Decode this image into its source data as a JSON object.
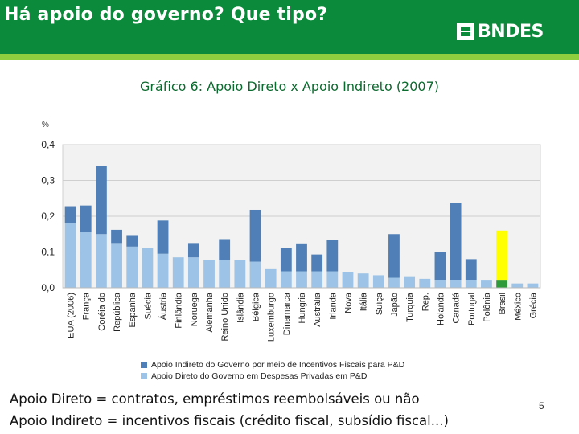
{
  "header": {
    "title": "Há apoio do governo? Que tipo?",
    "logo_text": "BNDES",
    "background_color": "#0a8a3a",
    "accent_bar_color": "#8fcf3f"
  },
  "chart_data": {
    "type": "bar",
    "stacked": true,
    "title": "Gráfico 6: Apoio Direto x Apoio Indireto (2007)",
    "ylabel": "%",
    "ylim": [
      0,
      0.4
    ],
    "yticks": [
      "0,0",
      "0,1",
      "0,2",
      "0,3",
      "0,4"
    ],
    "grid": true,
    "legend_position": "bottom",
    "categories": [
      "EUA (2006)",
      "França",
      "Coréia do Sul",
      "República Tcheca",
      "Espanha",
      "Suécia",
      "Áustria",
      "Finlândia",
      "Noruega",
      "Alemanha",
      "Reino Unido",
      "Islândia",
      "Bélgica",
      "Luxemburgo",
      "Dinamarca",
      "Hungria",
      "Austrália",
      "Irlanda",
      "Nova Zelândia",
      "Itália",
      "Suíça",
      "Japão",
      "Turquia",
      "Rep. Eslovaca",
      "Holanda",
      "Canadá",
      "Portugal",
      "Polônia",
      "Brasil",
      "México",
      "Grécia"
    ],
    "tick_labels": [
      "EUA (2006)",
      "França",
      "Coréia do",
      "República",
      "Espanha",
      "Suécia",
      "Áustria",
      "Finlândia",
      "Noruega",
      "Alemanha",
      "Reino Unido",
      "Islândia",
      "Bélgica",
      "Luxemburgo",
      "Dinamarca",
      "Hungria",
      "Austrália",
      "Irlanda",
      "Nova",
      "Itália",
      "Suíça",
      "Japão",
      "Turquia",
      "Rep.",
      "Holanda",
      "Canadá",
      "Portugal",
      "Polônia",
      "Brasil",
      "México",
      "Grécia"
    ],
    "series": [
      {
        "name": "Apoio Direto do Governo em Despesas Privadas em P&D",
        "color": "#9dc3e6",
        "values": [
          0.18,
          0.155,
          0.15,
          0.125,
          0.115,
          0.112,
          0.095,
          0.085,
          0.085,
          0.077,
          0.078,
          0.078,
          0.073,
          0.052,
          0.046,
          0.046,
          0.046,
          0.046,
          0.044,
          0.04,
          0.035,
          0.028,
          0.03,
          0.025,
          0.022,
          0.022,
          0.022,
          0.02,
          0.02,
          0.012,
          0.012
        ]
      },
      {
        "name": "Apoio Indireto do Governo por meio de Incentivos Fiscais para P&D",
        "color": "#4f7fb6",
        "values": [
          0.048,
          0.075,
          0.19,
          0.037,
          0.03,
          0.0,
          0.093,
          0.0,
          0.04,
          0.0,
          0.058,
          0.0,
          0.145,
          0.0,
          0.065,
          0.078,
          0.047,
          0.087,
          0.0,
          0.0,
          0.0,
          0.122,
          0.0,
          0.0,
          0.078,
          0.215,
          0.058,
          0.0,
          0.14,
          0.0,
          0.0
        ]
      }
    ],
    "highlight": {
      "category": "Brasil",
      "direct_color": "#2e9a3a",
      "indirect_color": "#ffff00"
    }
  },
  "footer": {
    "line1": "Apoio Direto = contratos, empréstimos reembolsáveis ou não",
    "line2": "Apoio Indireto = incentivos fiscais (crédito fiscal, subsídio fiscal...)",
    "page_number": "5"
  }
}
